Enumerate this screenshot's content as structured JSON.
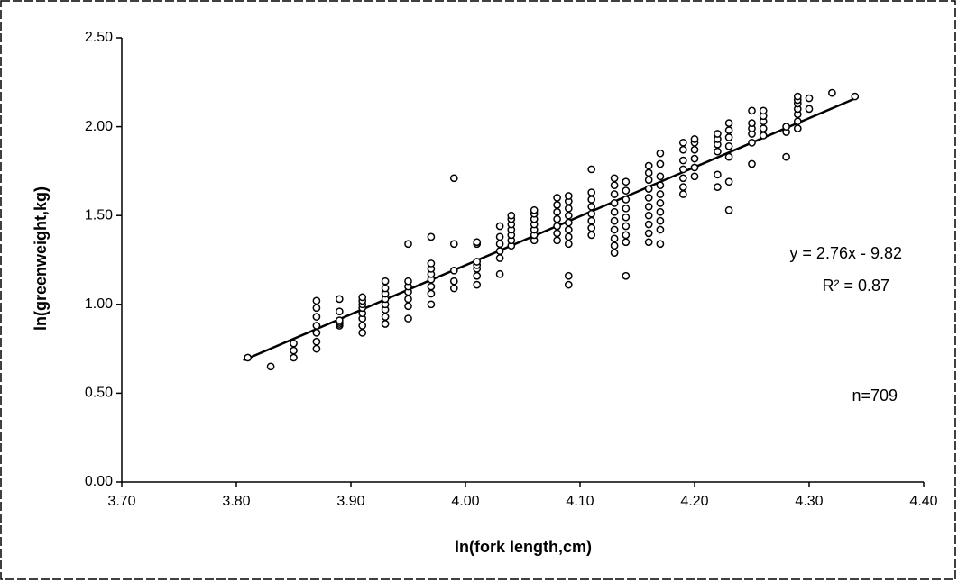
{
  "chart_data": {
    "type": "scatter",
    "x_label": "ln(fork length,cm)",
    "y_label": "ln(greenweight,kg)",
    "annotations": [
      "y = 2.76x - 9.82",
      "R² = 0.87",
      "n=709"
    ],
    "xlim": [
      3.7,
      4.4
    ],
    "ylim": [
      0,
      2.5
    ],
    "xticks": [
      {
        "value": 3.7,
        "label": "3.70"
      },
      {
        "value": 3.8,
        "label": "3.80"
      },
      {
        "value": 3.9,
        "label": "3.90"
      },
      {
        "value": 4.0,
        "label": "4.00"
      },
      {
        "value": 4.1,
        "label": "4.10"
      },
      {
        "value": 4.2,
        "label": "4.20"
      },
      {
        "value": 4.3,
        "label": "4.30"
      },
      {
        "value": 4.4,
        "label": "4.40"
      }
    ],
    "yticks": [
      {
        "value": 0,
        "label": "0.00"
      },
      {
        "value": 0.5,
        "label": "0.50"
      },
      {
        "value": 1.0,
        "label": "1.00"
      },
      {
        "value": 1.5,
        "label": "1.50"
      },
      {
        "value": 2.0,
        "label": "2.00"
      },
      {
        "value": 2.5,
        "label": "2.50"
      }
    ],
    "trendline": {
      "slope": 2.76,
      "intercept": -9.82,
      "x": [
        3.806,
        4.343
      ]
    },
    "color": "#000000",
    "x": [
      3.81,
      3.83,
      3.85,
      3.85,
      3.85,
      3.87,
      3.87,
      3.87,
      3.87,
      3.87,
      3.87,
      3.87,
      3.89,
      3.89,
      3.89,
      3.89,
      3.89,
      3.89,
      3.91,
      3.91,
      3.91,
      3.91,
      3.91,
      3.91,
      3.91,
      3.91,
      3.93,
      3.93,
      3.93,
      3.93,
      3.93,
      3.93,
      3.93,
      3.93,
      3.95,
      3.95,
      3.95,
      3.95,
      3.95,
      3.95,
      3.95,
      3.97,
      3.97,
      3.97,
      3.97,
      3.97,
      3.97,
      3.97,
      3.97,
      3.99,
      3.99,
      3.99,
      3.99,
      3.99,
      4.01,
      4.01,
      4.01,
      4.01,
      4.01,
      4.01,
      4.01,
      4.03,
      4.03,
      4.03,
      4.03,
      4.03,
      4.03,
      4.04,
      4.04,
      4.04,
      4.04,
      4.04,
      4.04,
      4.04,
      4.06,
      4.06,
      4.06,
      4.06,
      4.06,
      4.06,
      4.06,
      4.08,
      4.08,
      4.08,
      4.08,
      4.08,
      4.08,
      4.08,
      4.09,
      4.09,
      4.09,
      4.09,
      4.09,
      4.09,
      4.09,
      4.09,
      4.09,
      4.09,
      4.11,
      4.11,
      4.11,
      4.11,
      4.11,
      4.11,
      4.11,
      4.11,
      4.13,
      4.13,
      4.13,
      4.13,
      4.13,
      4.13,
      4.13,
      4.13,
      4.13,
      4.13,
      4.14,
      4.14,
      4.14,
      4.14,
      4.14,
      4.14,
      4.14,
      4.14,
      4.14,
      4.16,
      4.16,
      4.16,
      4.16,
      4.16,
      4.16,
      4.16,
      4.16,
      4.16,
      4.16,
      4.17,
      4.17,
      4.17,
      4.17,
      4.17,
      4.17,
      4.17,
      4.17,
      4.17,
      4.17,
      4.19,
      4.19,
      4.19,
      4.19,
      4.19,
      4.19,
      4.19,
      4.2,
      4.2,
      4.2,
      4.2,
      4.2,
      4.2,
      4.22,
      4.22,
      4.22,
      4.22,
      4.22,
      4.22,
      4.23,
      4.23,
      4.23,
      4.23,
      4.23,
      4.23,
      4.23,
      4.25,
      4.25,
      4.25,
      4.25,
      4.25,
      4.25,
      4.26,
      4.26,
      4.26,
      4.26,
      4.26,
      4.28,
      4.28,
      4.28,
      4.29,
      4.29,
      4.29,
      4.29,
      4.29,
      4.29,
      4.29,
      4.3,
      4.3,
      4.32,
      4.34
    ],
    "y": [
      0.7,
      0.65,
      0.7,
      0.74,
      0.78,
      0.75,
      0.79,
      0.84,
      0.88,
      0.93,
      0.98,
      1.02,
      0.88,
      0.89,
      0.9,
      0.91,
      0.96,
      1.03,
      0.84,
      0.88,
      0.92,
      0.95,
      0.98,
      1.0,
      1.02,
      1.04,
      0.89,
      0.93,
      0.97,
      1.0,
      1.03,
      1.06,
      1.09,
      1.13,
      0.92,
      0.99,
      1.03,
      1.07,
      1.1,
      1.13,
      1.34,
      1.0,
      1.06,
      1.1,
      1.14,
      1.17,
      1.2,
      1.23,
      1.38,
      1.09,
      1.13,
      1.19,
      1.34,
      1.71,
      1.11,
      1.16,
      1.2,
      1.22,
      1.24,
      1.34,
      1.35,
      1.17,
      1.26,
      1.3,
      1.34,
      1.38,
      1.44,
      1.33,
      1.36,
      1.39,
      1.42,
      1.45,
      1.48,
      1.5,
      1.36,
      1.39,
      1.42,
      1.45,
      1.48,
      1.51,
      1.53,
      1.36,
      1.4,
      1.44,
      1.48,
      1.52,
      1.56,
      1.6,
      1.11,
      1.16,
      1.34,
      1.38,
      1.42,
      1.46,
      1.5,
      1.54,
      1.58,
      1.61,
      1.39,
      1.43,
      1.47,
      1.51,
      1.55,
      1.59,
      1.63,
      1.76,
      1.29,
      1.33,
      1.37,
      1.42,
      1.47,
      1.52,
      1.57,
      1.62,
      1.67,
      1.71,
      1.16,
      1.35,
      1.39,
      1.44,
      1.49,
      1.54,
      1.59,
      1.64,
      1.69,
      1.35,
      1.4,
      1.45,
      1.5,
      1.55,
      1.6,
      1.65,
      1.7,
      1.74,
      1.78,
      1.34,
      1.42,
      1.47,
      1.52,
      1.57,
      1.62,
      1.67,
      1.72,
      1.79,
      1.85,
      1.62,
      1.66,
      1.71,
      1.76,
      1.81,
      1.87,
      1.91,
      1.72,
      1.77,
      1.82,
      1.87,
      1.91,
      1.93,
      1.66,
      1.73,
      1.86,
      1.9,
      1.93,
      1.96,
      1.53,
      1.69,
      1.83,
      1.89,
      1.94,
      1.98,
      2.02,
      1.79,
      1.91,
      1.96,
      1.99,
      2.02,
      2.09,
      1.95,
      1.99,
      2.03,
      2.06,
      2.09,
      1.83,
      1.97,
      2.0,
      1.99,
      2.03,
      2.07,
      2.1,
      2.13,
      2.15,
      2.17,
      2.1,
      2.16,
      2.19,
      2.17
    ]
  }
}
